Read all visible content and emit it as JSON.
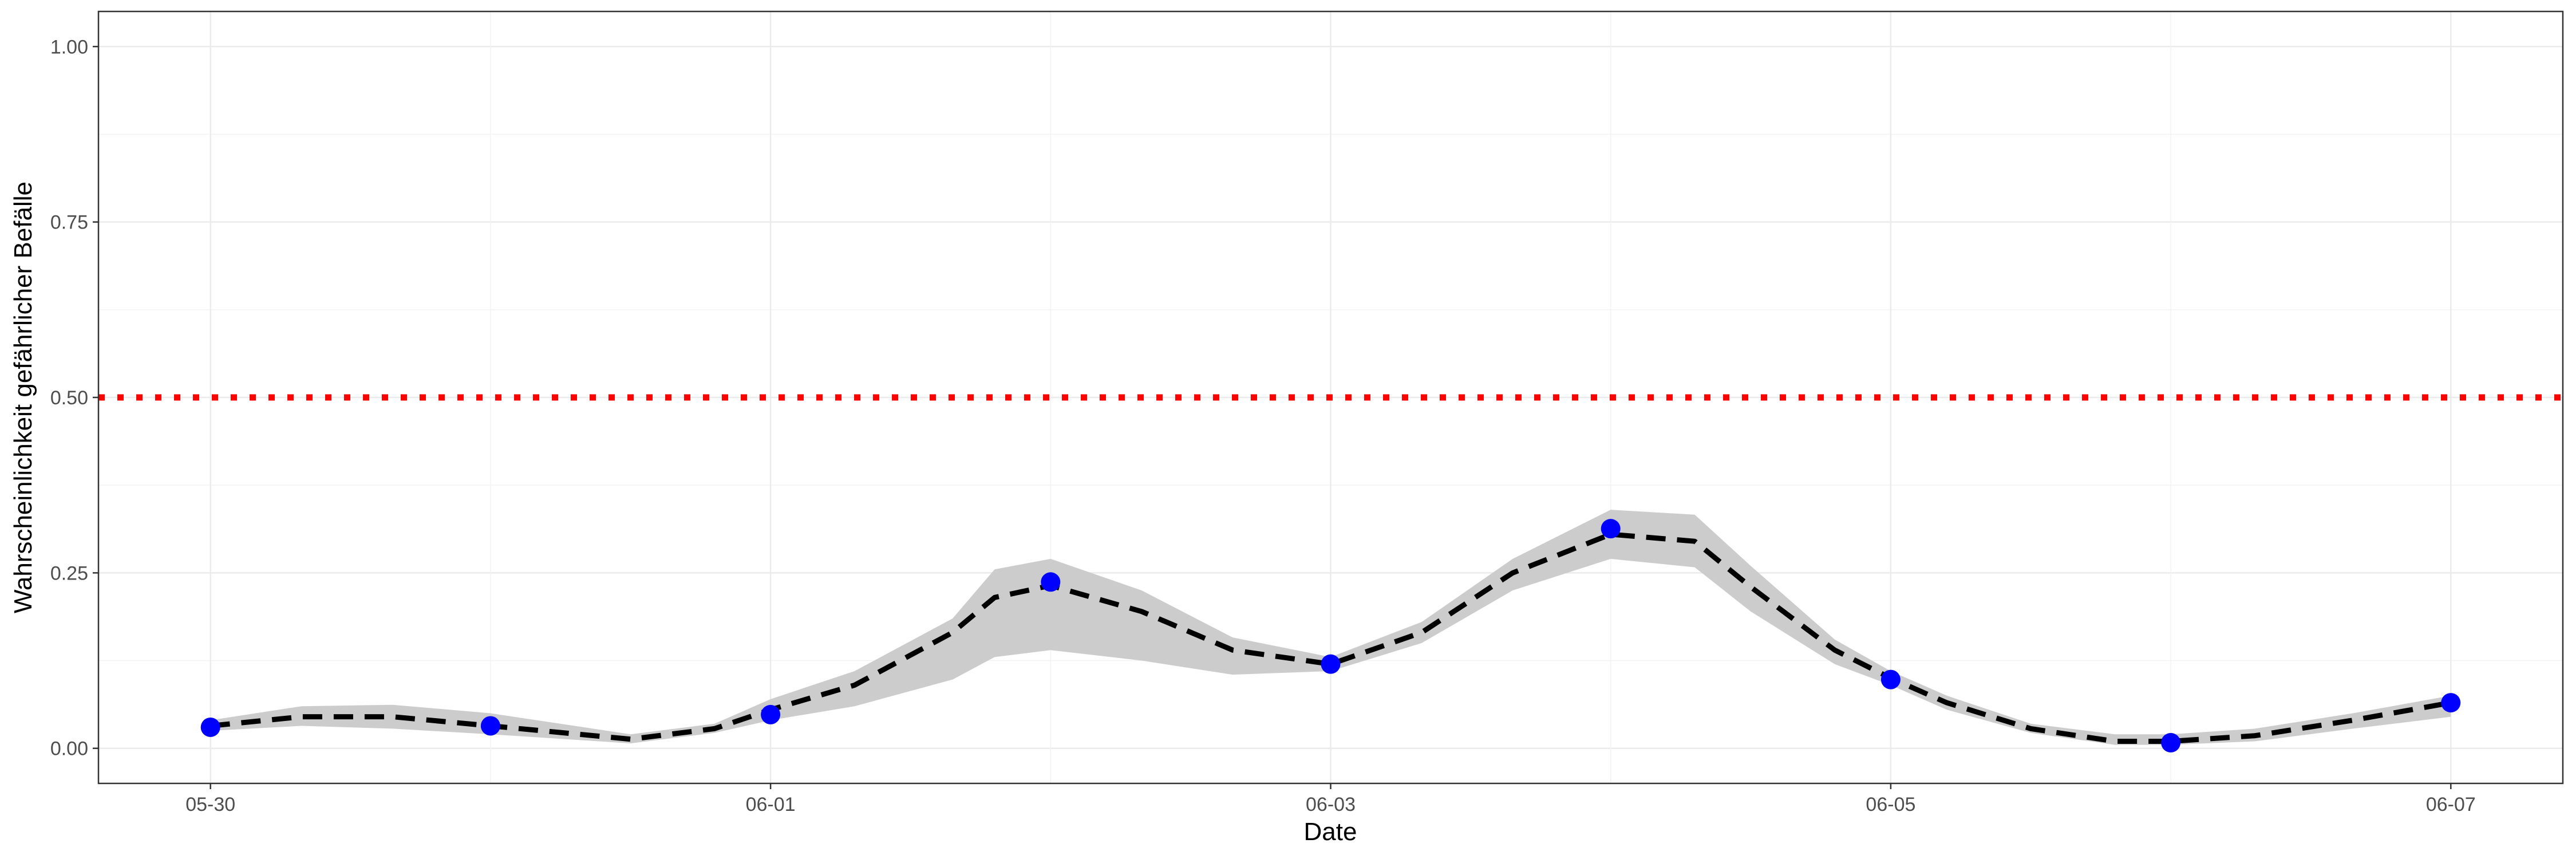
{
  "chart_data": {
    "type": "line",
    "xlabel": "Date",
    "ylabel": "Wahrscheinlichkeit gefährlicher Befälle",
    "x_ticks": [
      "05-30",
      "06-01",
      "06-03",
      "06-05",
      "06-07"
    ],
    "y_ticks": [
      "0.00",
      "0.25",
      "0.50",
      "0.75",
      "1.00"
    ],
    "xlim": [
      "05-29 14:24",
      "06-07 09:36"
    ],
    "ylim": [
      -0.05,
      1.05
    ],
    "grid": true,
    "threshold": {
      "y": 0.5,
      "color": "#ff0000",
      "style": "dotted"
    },
    "observed_points": {
      "color": "#0000ff",
      "x": [
        "05-30",
        "05-31",
        "06-01",
        "06-02",
        "06-03",
        "06-04",
        "06-05",
        "06-06",
        "06-07"
      ],
      "y": [
        0.03,
        0.032,
        0.048,
        0.237,
        0.12,
        0.313,
        0.098,
        0.008,
        0.065
      ]
    },
    "fitted_line": {
      "color": "#000000",
      "style": "dashed",
      "x": [
        "05-30 00:00",
        "05-30 07:48",
        "05-30 15:36",
        "05-31 00:00",
        "05-31 12:00",
        "05-31 19:12",
        "06-01 00:00",
        "06-01 07:12",
        "06-01 15:36",
        "06-01 19:12",
        "06-02 00:00",
        "06-02 07:48",
        "06-02 15:36",
        "06-03 00:00",
        "06-03 07:48",
        "06-03 15:36",
        "06-04 00:00",
        "06-04 07:12",
        "06-04 12:00",
        "06-04 19:12",
        "06-05 00:00",
        "06-05 04:48",
        "06-05 12:00",
        "06-05 19:12",
        "06-06 00:00",
        "06-06 07:12",
        "06-06 15:36",
        "06-07 00:00"
      ],
      "y": [
        0.032,
        0.045,
        0.045,
        0.032,
        0.013,
        0.028,
        0.055,
        0.09,
        0.165,
        0.215,
        0.232,
        0.195,
        0.14,
        0.12,
        0.165,
        0.25,
        0.305,
        0.295,
        0.23,
        0.14,
        0.1,
        0.065,
        0.028,
        0.01,
        0.01,
        0.018,
        0.04,
        0.065
      ]
    },
    "confidence_band": {
      "color": "#cccccc",
      "x": [
        "05-30 00:00",
        "05-30 07:48",
        "05-30 15:36",
        "05-31 00:00",
        "05-31 12:00",
        "05-31 19:12",
        "06-01 00:00",
        "06-01 07:12",
        "06-01 15:36",
        "06-01 19:12",
        "06-02 00:00",
        "06-02 07:48",
        "06-02 15:36",
        "06-03 00:00",
        "06-03 07:48",
        "06-03 15:36",
        "06-04 00:00",
        "06-04 07:12",
        "06-04 12:00",
        "06-04 19:12",
        "06-05 00:00",
        "06-05 04:48",
        "06-05 12:00",
        "06-05 19:12",
        "06-06 00:00",
        "06-06 07:12",
        "06-06 15:36",
        "06-07 00:00"
      ],
      "upper": [
        0.04,
        0.06,
        0.062,
        0.05,
        0.02,
        0.035,
        0.07,
        0.11,
        0.185,
        0.255,
        0.27,
        0.225,
        0.158,
        0.13,
        0.18,
        0.27,
        0.34,
        0.333,
        0.26,
        0.155,
        0.11,
        0.075,
        0.035,
        0.02,
        0.02,
        0.028,
        0.05,
        0.075
      ],
      "lower": [
        0.025,
        0.032,
        0.028,
        0.02,
        0.007,
        0.022,
        0.04,
        0.06,
        0.098,
        0.13,
        0.14,
        0.125,
        0.105,
        0.11,
        0.15,
        0.225,
        0.27,
        0.258,
        0.195,
        0.12,
        0.09,
        0.055,
        0.022,
        0.005,
        0.005,
        0.01,
        0.028,
        0.045
      ]
    }
  }
}
